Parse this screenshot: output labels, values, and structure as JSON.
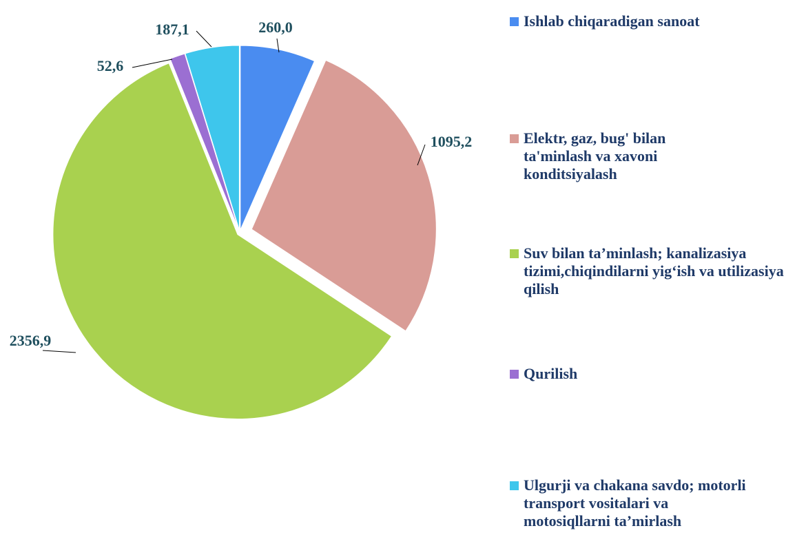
{
  "chart_data": {
    "type": "pie",
    "categories": [
      "Ishlab chiqaradigan sanoat",
      "Elektr, gaz, bug' bilan ta'minlash va xavoni konditsiyalash",
      "Suv bilan ta’minlash; kanalizasiya tizimi,chiqindilarni yig‘ish va utilizasiya qilish",
      "Qurilish",
      "Ulgurji va chakana savdo; motorli transport vositalari va motosiqllarni ta’mirlash"
    ],
    "values": [
      260.0,
      1095.2,
      2356.9,
      52.6,
      187.1
    ],
    "value_labels": [
      "260,0",
      "1095,2",
      "2356,9",
      "52,6",
      "187,1"
    ],
    "colors": [
      "#4a8cf0",
      "#d99c96",
      "#a9d14f",
      "#9b6fd2",
      "#3ec6ec"
    ],
    "legend": "right"
  }
}
